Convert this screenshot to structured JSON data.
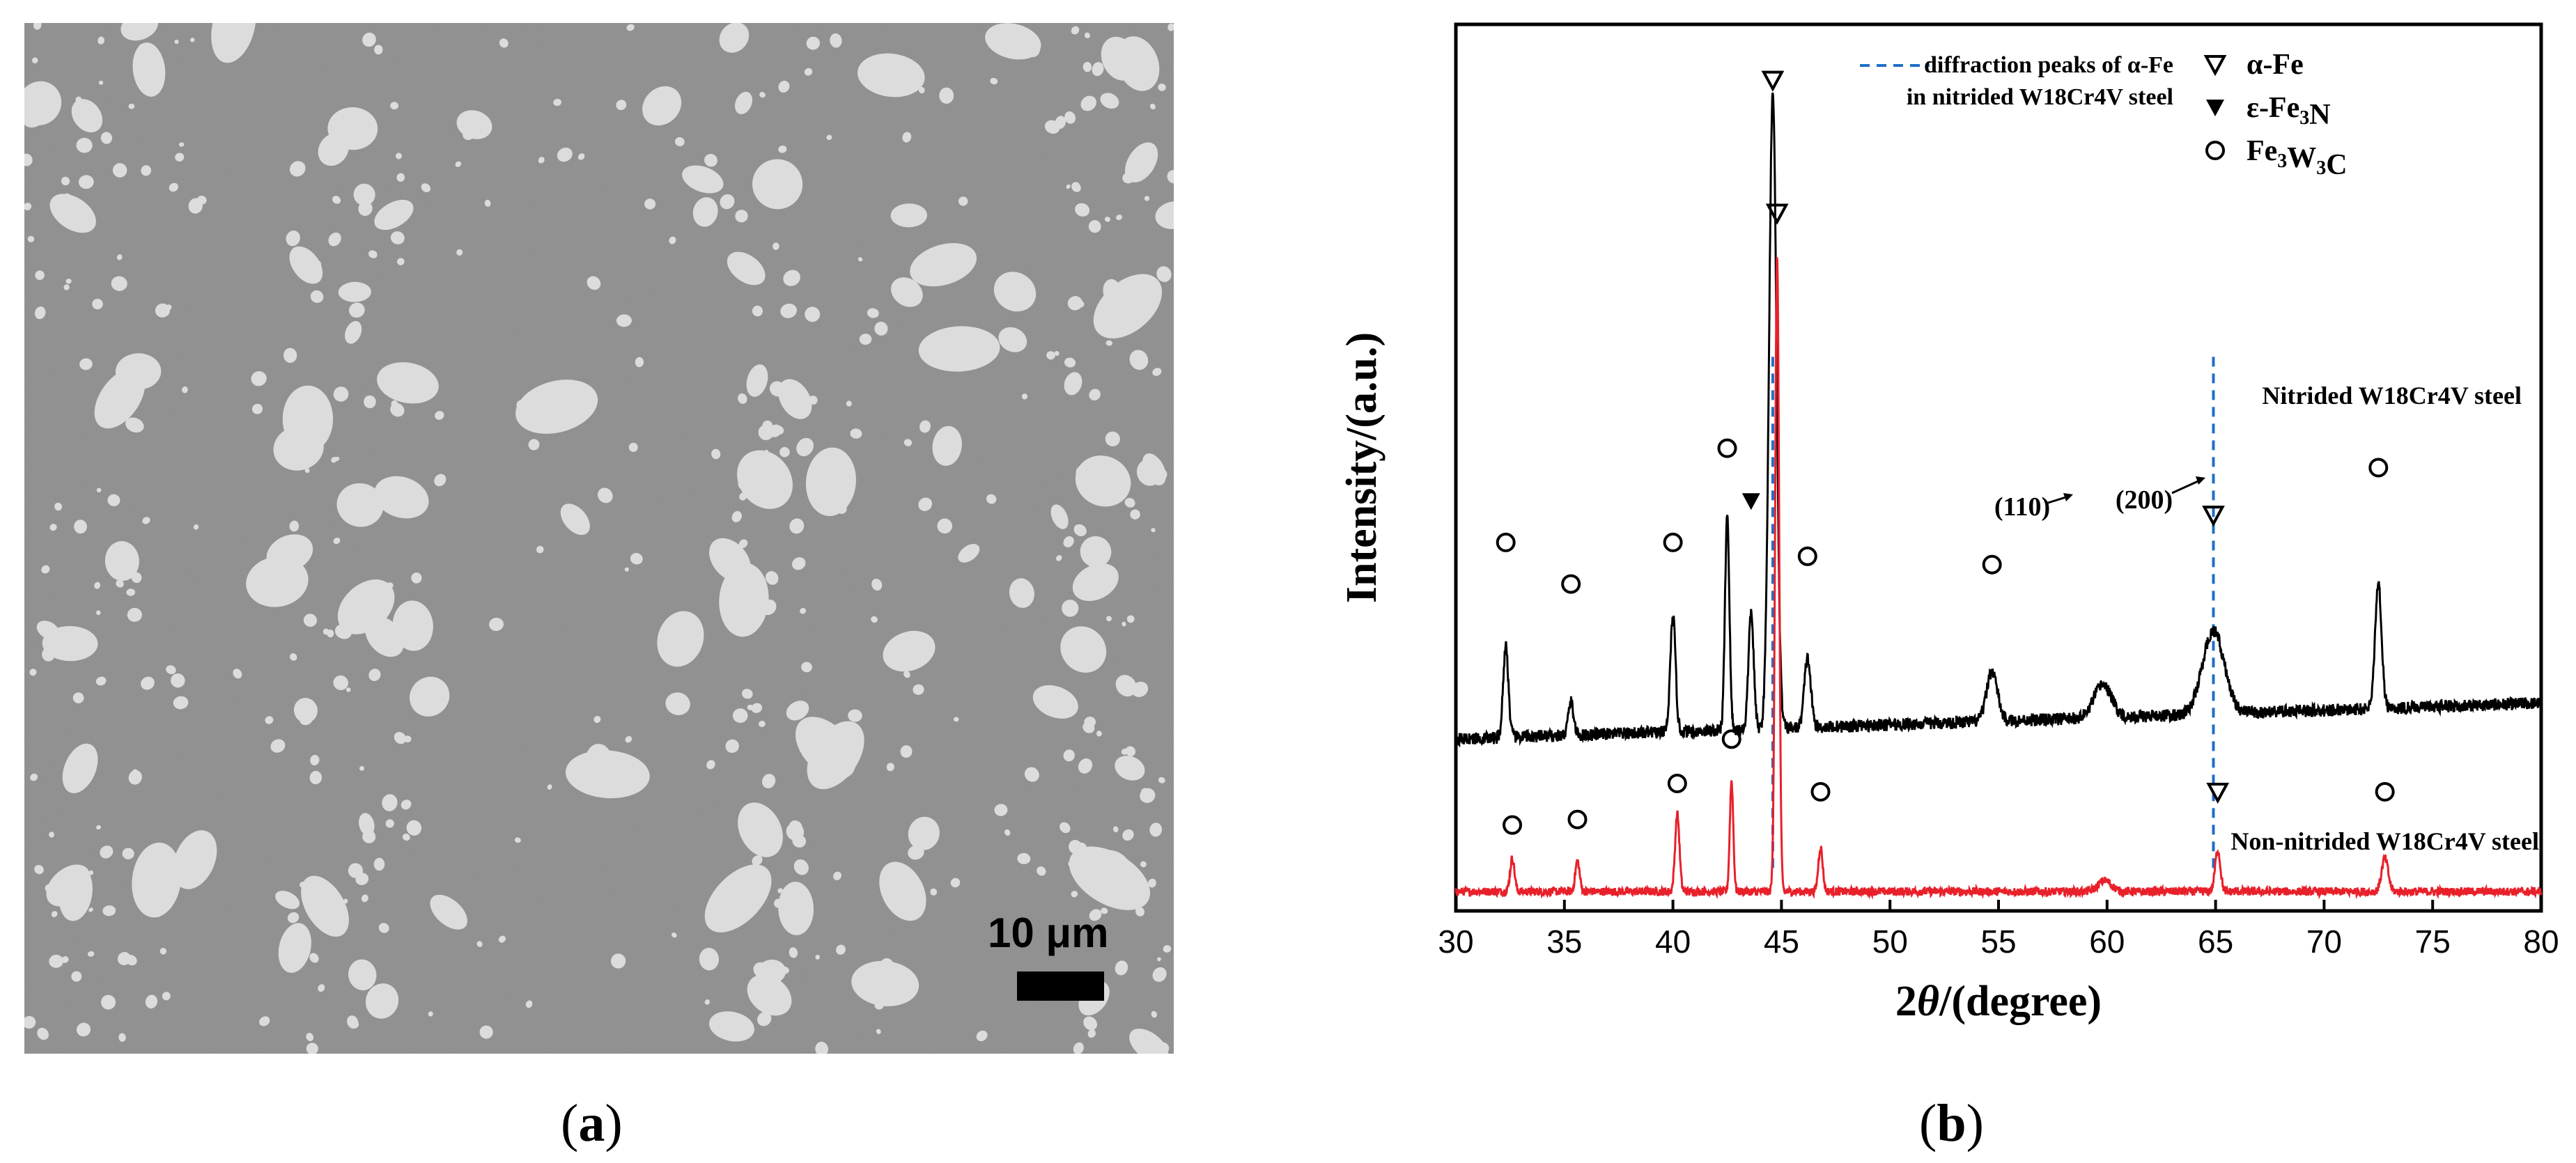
{
  "panel_a": {
    "label_open": "(",
    "label_letter": "a",
    "label_close": ")",
    "scale_bar_text": "10 μm",
    "colors": {
      "matrix": "#8a8a8a",
      "particles": "#dcdcdc",
      "scale_bar": "#000000"
    }
  },
  "panel_b": {
    "label_open": "(",
    "label_letter": "b",
    "label_close": ")"
  },
  "chart_data": {
    "type": "line",
    "xlabel_prefix": "2",
    "xlabel_theta": "θ",
    "xlabel_suffix": "/(degree)",
    "ylabel": "Intensity/(a.u.)",
    "xlim": [
      30,
      80
    ],
    "xticks": [
      30,
      35,
      40,
      45,
      50,
      55,
      60,
      65,
      70,
      75,
      80
    ],
    "y_ticks_shown": false,
    "grid": false,
    "legend_position": "top-right",
    "legend": {
      "dashed_line_text_1": "diffraction peaks of α-Fe",
      "dashed_line_text_2": "in nitrided W18Cr4V steel",
      "entries": [
        {
          "marker": "open-down-triangle",
          "parts": [
            {
              "t": "α-Fe",
              "sub": false
            }
          ]
        },
        {
          "marker": "filled-down-triangle",
          "parts": [
            {
              "t": "ε-Fe",
              "sub": false
            },
            {
              "t": "3",
              "sub": true
            },
            {
              "t": "N",
              "sub": false
            }
          ]
        },
        {
          "marker": "open-circle",
          "parts": [
            {
              "t": "Fe",
              "sub": false
            },
            {
              "t": "3",
              "sub": true
            },
            {
              "t": "W",
              "sub": false
            },
            {
              "t": "3",
              "sub": true
            },
            {
              "t": "C",
              "sub": false
            }
          ]
        }
      ]
    },
    "series": [
      {
        "name": "Nitrided W18Cr4V steel",
        "color": "#000000",
        "baseline": 0.62,
        "slope": 0.0026,
        "noise": 0.045,
        "peaks": [
          {
            "x": 32.3,
            "h": 0.33,
            "w": 0.12
          },
          {
            "x": 35.3,
            "h": 0.12,
            "w": 0.12
          },
          {
            "x": 40.0,
            "h": 0.42,
            "w": 0.12
          },
          {
            "x": 42.5,
            "h": 0.78,
            "w": 0.1
          },
          {
            "x": 43.6,
            "h": 0.42,
            "w": 0.12
          },
          {
            "x": 44.6,
            "h": 2.3,
            "w": 0.17
          },
          {
            "x": 46.2,
            "h": 0.25,
            "w": 0.15
          },
          {
            "x": 54.7,
            "h": 0.18,
            "w": 0.25
          },
          {
            "x": 59.8,
            "h": 0.12,
            "w": 0.4
          },
          {
            "x": 64.9,
            "h": 0.3,
            "w": 0.5
          },
          {
            "x": 72.5,
            "h": 0.45,
            "w": 0.15
          }
        ],
        "markers": [
          {
            "x": 32.3,
            "type": "open-circle",
            "y": 1.33
          },
          {
            "x": 35.3,
            "type": "open-circle",
            "y": 1.18
          },
          {
            "x": 40.0,
            "type": "open-circle",
            "y": 1.33
          },
          {
            "x": 42.5,
            "type": "open-circle",
            "y": 1.67
          },
          {
            "x": 43.6,
            "type": "filled-down-triangle",
            "y": 1.48
          },
          {
            "x": 46.2,
            "type": "open-circle",
            "y": 1.28
          },
          {
            "x": 54.7,
            "type": "open-circle",
            "y": 1.25
          },
          {
            "x": 64.9,
            "type": "open-down-triangle",
            "y": 1.43
          },
          {
            "x": 72.5,
            "type": "open-circle",
            "y": 1.6
          },
          {
            "x": 44.6,
            "type": "open-down-triangle",
            "y": 3.0
          }
        ]
      },
      {
        "name": "Non-nitrided W18Cr4V steel",
        "color": "#e8202a",
        "baseline": 0.07,
        "slope": 0,
        "noise": 0.03,
        "peaks": [
          {
            "x": 32.6,
            "h": 0.12,
            "w": 0.1
          },
          {
            "x": 35.6,
            "h": 0.11,
            "w": 0.1
          },
          {
            "x": 40.2,
            "h": 0.28,
            "w": 0.1
          },
          {
            "x": 42.7,
            "h": 0.4,
            "w": 0.08
          },
          {
            "x": 44.8,
            "h": 2.3,
            "w": 0.09
          },
          {
            "x": 46.8,
            "h": 0.16,
            "w": 0.1
          },
          {
            "x": 59.9,
            "h": 0.04,
            "w": 0.3
          },
          {
            "x": 65.1,
            "h": 0.15,
            "w": 0.12
          },
          {
            "x": 72.8,
            "h": 0.12,
            "w": 0.15
          }
        ],
        "markers": [
          {
            "x": 32.6,
            "type": "open-circle",
            "y": 0.31
          },
          {
            "x": 35.6,
            "type": "open-circle",
            "y": 0.33
          },
          {
            "x": 40.2,
            "type": "open-circle",
            "y": 0.46
          },
          {
            "x": 42.7,
            "type": "open-circle",
            "y": 0.62
          },
          {
            "x": 46.8,
            "type": "open-circle",
            "y": 0.43
          },
          {
            "x": 65.1,
            "type": "open-down-triangle",
            "y": 0.43
          },
          {
            "x": 72.8,
            "type": "open-circle",
            "y": 0.43
          },
          {
            "x": 44.8,
            "type": "open-down-triangle",
            "y": 2.52
          }
        ]
      }
    ],
    "reference_lines": [
      {
        "x": 44.6,
        "color": "#1f6fc9",
        "style": "dashed"
      },
      {
        "x": 64.9,
        "color": "#1f6fc9",
        "style": "dashed"
      }
    ],
    "annotations": [
      {
        "text": "(110)",
        "points_to_x": 44.6
      },
      {
        "text": "(200)",
        "points_to_x": 64.9
      },
      {
        "text": "Nitrided W18Cr4V steel"
      },
      {
        "text": "Non-nitrided W18Cr4V steel"
      }
    ]
  }
}
